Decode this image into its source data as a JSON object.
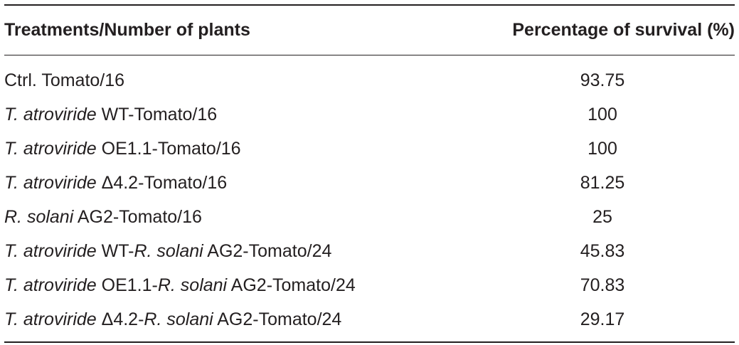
{
  "table": {
    "headers": [
      "Treatments/Number of plants",
      "Percentage of survival (%)"
    ],
    "rows": [
      {
        "parts": [
          {
            "t": "Ctrl. Tomato/16",
            "i": false
          }
        ],
        "value": "93.75"
      },
      {
        "parts": [
          {
            "t": "T. atroviride",
            "i": true
          },
          {
            "t": " WT-Tomato/16",
            "i": false
          }
        ],
        "value": "100"
      },
      {
        "parts": [
          {
            "t": "T. atroviride",
            "i": true
          },
          {
            "t": " OE1.1-Tomato/16",
            "i": false
          }
        ],
        "value": "100"
      },
      {
        "parts": [
          {
            "t": "T. atroviride",
            "i": true
          },
          {
            "t": " Δ4.2-Tomato/16",
            "i": false
          }
        ],
        "value": "81.25"
      },
      {
        "parts": [
          {
            "t": "R. solani",
            "i": true
          },
          {
            "t": " AG2-Tomato/16",
            "i": false
          }
        ],
        "value": "25"
      },
      {
        "parts": [
          {
            "t": "T. atroviride",
            "i": true
          },
          {
            "t": " WT-",
            "i": false
          },
          {
            "t": "R. solani",
            "i": true
          },
          {
            "t": " AG2-Tomato/24",
            "i": false
          }
        ],
        "value": "45.83"
      },
      {
        "parts": [
          {
            "t": "T. atroviride",
            "i": true
          },
          {
            "t": " OE1.1-",
            "i": false
          },
          {
            "t": "R. solani",
            "i": true
          },
          {
            "t": " AG2-Tomato/24",
            "i": false
          }
        ],
        "value": "70.83"
      },
      {
        "parts": [
          {
            "t": "T. atroviride",
            "i": true
          },
          {
            "t": " Δ4.2-",
            "i": false
          },
          {
            "t": "R. solani",
            "i": true
          },
          {
            "t": " AG2-Tomato/24",
            "i": false
          }
        ],
        "value": "29.17"
      }
    ]
  }
}
